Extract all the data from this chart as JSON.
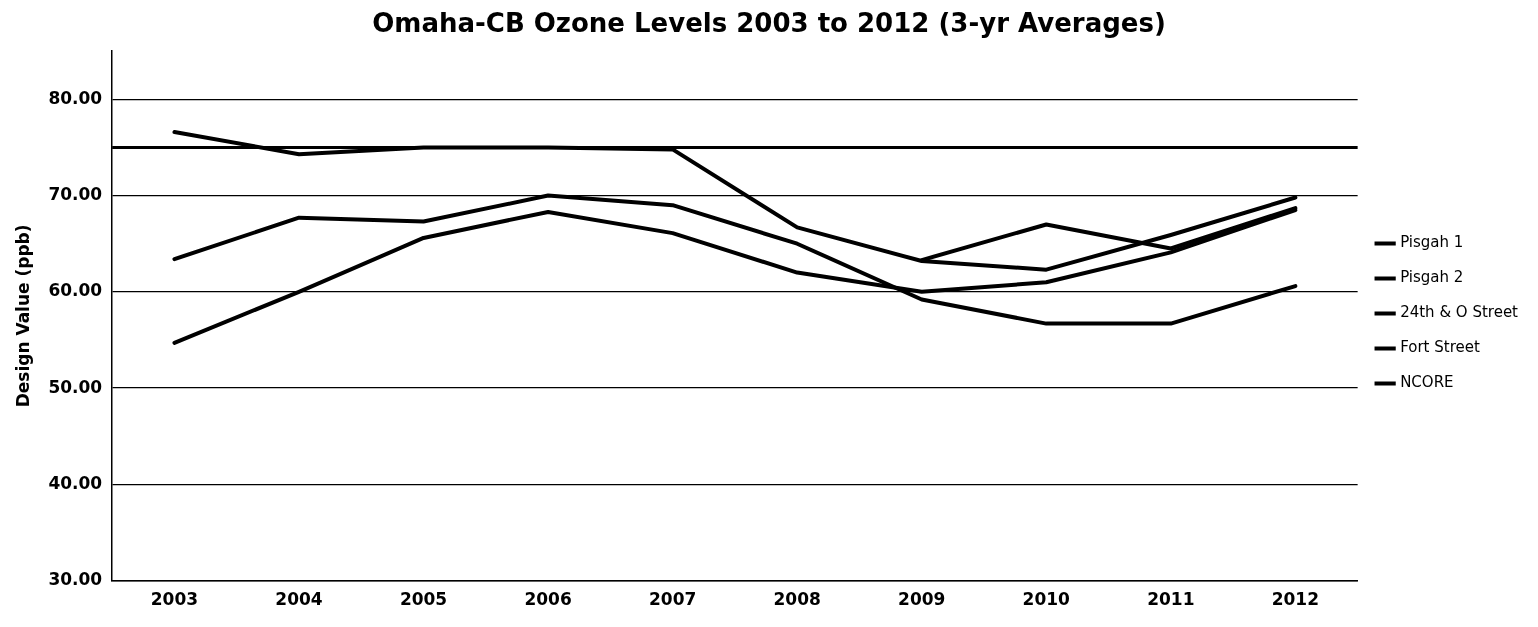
{
  "chart_data": {
    "type": "line",
    "title": "Omaha-CB Ozone Levels 2003 to 2012 (3-yr Averages)",
    "ylabel": "Design Value (ppb)",
    "categories": [
      "2003",
      "2004",
      "2005",
      "2006",
      "2007",
      "2008",
      "2009",
      "2010",
      "2011",
      "2012"
    ],
    "series": [
      {
        "name": "Pisgah 1",
        "color": "#000000",
        "values": [
          76.6,
          74.3,
          75.0,
          75.0,
          74.8,
          66.7,
          63.2,
          62.3,
          65.9,
          69.8
        ]
      },
      {
        "name": "Pisgah 2",
        "color": "#000000",
        "values": [
          63.4,
          67.7,
          67.3,
          70.0,
          69.0,
          65.0,
          59.2,
          56.7,
          56.7,
          60.6
        ]
      },
      {
        "name": "24th & O Street",
        "color": "#000000",
        "values": [
          54.7,
          60.0,
          65.6,
          68.3,
          66.1,
          62.0,
          60.0,
          61.0,
          64.1,
          68.5
        ]
      },
      {
        "name": "Fort Street",
        "color": "#000000",
        "values": [
          null,
          null,
          null,
          null,
          null,
          null,
          null,
          null,
          null,
          null
        ]
      },
      {
        "name": "NCORE",
        "color": "#000000",
        "values": [
          null,
          null,
          null,
          null,
          null,
          null,
          63.3,
          67.0,
          64.5,
          68.7
        ]
      }
    ],
    "ref_lines": [
      {
        "axis": "y",
        "value": 75,
        "color": "#000000"
      }
    ],
    "ylim": [
      30,
      85
    ],
    "yticks": [
      {
        "value": 30,
        "label": "30.00"
      },
      {
        "value": 40,
        "label": "40.00"
      },
      {
        "value": 50,
        "label": "50.00"
      },
      {
        "value": 60,
        "label": "60.00"
      },
      {
        "value": 70,
        "label": "70.00"
      },
      {
        "value": 80,
        "label": "80.00"
      }
    ],
    "grid": "y",
    "legend": "right",
    "marker": "none",
    "line_style": "solid"
  }
}
